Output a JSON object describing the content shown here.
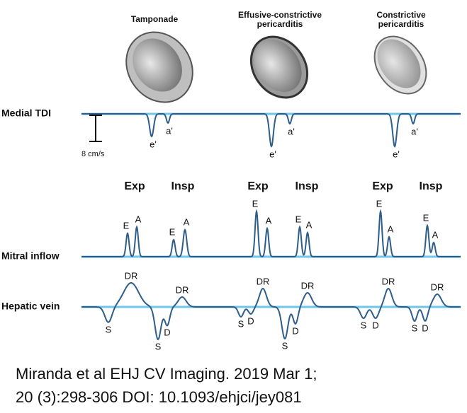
{
  "row_labels": [
    "Medial TDI",
    "Mitral inflow",
    "Hepatic vein"
  ],
  "scale_label": "8 cm/s",
  "columns": [
    {
      "title_lines": [
        "Tamponade"
      ],
      "tdi_labels": [
        "e'",
        "a'"
      ],
      "phases": [
        "Exp",
        "Insp"
      ],
      "mitral_labels": [
        "E",
        "A",
        "E",
        "A"
      ],
      "hepatic_labels": [
        "S",
        "DR",
        "S",
        "D",
        "DR"
      ]
    },
    {
      "title_lines": [
        "Effusive-constrictive",
        "pericarditis"
      ],
      "tdi_labels": [
        "e'",
        "a'"
      ],
      "phases": [
        "Exp",
        "Insp"
      ],
      "mitral_labels": [
        "E",
        "A",
        "E",
        "A"
      ],
      "hepatic_labels": [
        "S",
        "D",
        "DR",
        "S",
        "D",
        "DR"
      ]
    },
    {
      "title_lines": [
        "Constrictive",
        "pericarditis"
      ],
      "tdi_labels": [
        "e'",
        "a'"
      ],
      "phases": [
        "Exp",
        "Insp"
      ],
      "mitral_labels": [
        "E",
        "A",
        "E",
        "A"
      ],
      "hepatic_labels": [
        "S",
        "D",
        "DR",
        "S",
        "D",
        "DR"
      ]
    }
  ],
  "citation_lines": [
    "Miranda et al EHJ CV Imaging. 2019 Mar 1;",
    "20 (3):298-306 DOI: 10.1093/ehjci/jey081"
  ]
}
